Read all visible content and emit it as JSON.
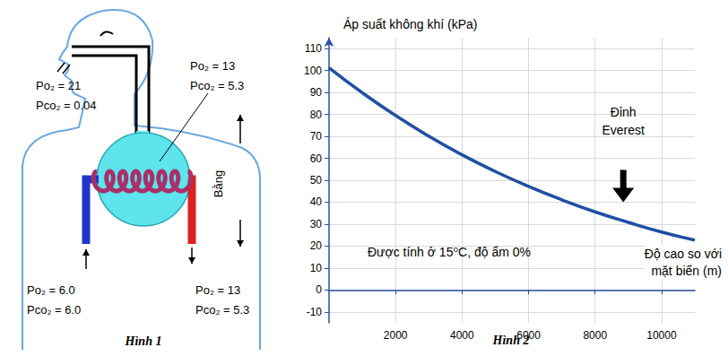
{
  "chart_data": {
    "type": "line",
    "caption": "Hình 2",
    "y_label": "Áp suất không khí (kPa)",
    "x_label": "Độ cao so với\nmặt biển (m)",
    "note": "Được tính ở 15⁰C, độ ẩm 0%",
    "x": [
      0,
      1000,
      2000,
      3000,
      4000,
      5000,
      6000,
      7000,
      8000,
      9000,
      10000,
      11000
    ],
    "values": [
      101.3,
      89.9,
      79.5,
      70.1,
      61.6,
      54.0,
      47.2,
      41.1,
      35.6,
      30.8,
      26.4,
      22.7
    ],
    "color": "#1f4fa3",
    "xlim": [
      0,
      11000
    ],
    "xticks": [
      2000,
      4000,
      6000,
      8000,
      10000
    ],
    "ylim": [
      -15,
      115
    ],
    "yticks": [
      -10,
      0,
      10,
      20,
      30,
      40,
      50,
      60,
      70,
      80,
      90,
      100,
      110
    ],
    "grid": true,
    "annotation": {
      "text": "Đỉnh\nEverest",
      "x": 8848,
      "y": 40
    }
  },
  "figure_1": {
    "caption": "Hình 1",
    "air": [
      "Po₂ = 21",
      "Pco₂ = 0.04"
    ],
    "alveolus": [
      "Po₂ = 13",
      "Pco₂ = 5.3"
    ],
    "venous": [
      "Po₂ = 6.0",
      "Pco₂ = 6.0"
    ],
    "arterial": [
      "Po₂ = 13",
      "Pco₂ = 5.3"
    ],
    "equal": "Bằng"
  }
}
